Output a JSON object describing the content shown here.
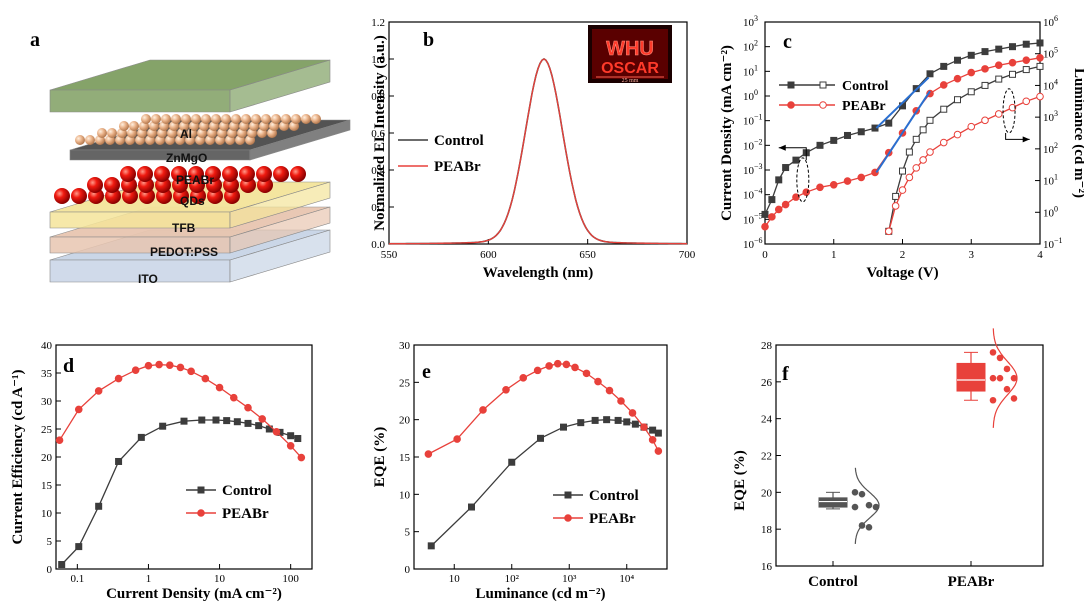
{
  "panels": {
    "a": {
      "letter": "a",
      "layers": [
        "Al",
        "ZnMgO",
        "PEABr",
        "QDs",
        "TFB",
        "PEDOT:PSS",
        "ITO"
      ],
      "colors": {
        "Al": "#7f9f62",
        "ZnMgO": "#e8b98c",
        "PEABr": "#4a4a4a",
        "QDs": "#e01010",
        "TFB": "#f4e49a",
        "PEDOT:PSS": "#e8c6b0",
        "ITO": "#c8d4e6"
      }
    },
    "b": {
      "letter": "b",
      "inset": {
        "line1": "WHU",
        "line2": "OSCAR",
        "scale": "25 mm"
      }
    },
    "c": {
      "letter": "c"
    },
    "d": {
      "letter": "d"
    },
    "e": {
      "letter": "e"
    },
    "f": {
      "letter": "f"
    }
  },
  "chart_data": [
    {
      "id": "b",
      "type": "line",
      "xlabel": "Wavelength (nm)",
      "ylabel": "Normalized EL Intensity (a.u.)",
      "xlim": [
        550,
        700
      ],
      "ylim": [
        0,
        1.2
      ],
      "xticks": [
        550,
        600,
        650,
        700
      ],
      "yticks": [
        0.0,
        0.2,
        0.4,
        0.6,
        0.8,
        1.0,
        1.2
      ],
      "peak": 628,
      "fwhm": 22,
      "legend": [
        "Control",
        "PEABr"
      ],
      "series": [
        {
          "name": "Control",
          "color": "#3c3c3c"
        },
        {
          "name": "PEABr",
          "color": "#e8413b"
        }
      ]
    },
    {
      "id": "c",
      "type": "line",
      "xlabel": "Voltage (V)",
      "ylabel": "Current Density (mA cm⁻²)",
      "ylabel2": "Luminance (cd m⁻²)",
      "xlim": [
        0,
        4
      ],
      "xticks": [
        0,
        1,
        2,
        3,
        4
      ],
      "ylog_left": [
        -6,
        3
      ],
      "ylog_right": [
        -1,
        6
      ],
      "legend": [
        "Control",
        "PEABr"
      ],
      "series": [
        {
          "name": "Control",
          "axis": "left",
          "color": "#3c3c3c",
          "x": [
            0,
            0.1,
            0.2,
            0.3,
            0.45,
            0.6,
            0.8,
            1.0,
            1.2,
            1.4,
            1.6,
            1.8,
            2.0,
            2.2,
            2.4,
            2.6,
            2.8,
            3.0,
            3.2,
            3.4,
            3.6,
            3.8,
            4.0
          ],
          "y_log": [
            -4.8,
            -4.2,
            -3.4,
            -2.9,
            -2.6,
            -2.3,
            -2.0,
            -1.8,
            -1.6,
            -1.45,
            -1.3,
            -1.1,
            -0.4,
            0.3,
            0.9,
            1.2,
            1.45,
            1.65,
            1.8,
            1.9,
            2.0,
            2.1,
            2.15
          ]
        },
        {
          "name": "PEABr",
          "axis": "left",
          "color": "#e8413b",
          "x": [
            0,
            0.1,
            0.2,
            0.3,
            0.45,
            0.6,
            0.8,
            1.0,
            1.2,
            1.4,
            1.6,
            1.8,
            2.0,
            2.2,
            2.4,
            2.6,
            2.8,
            3.0,
            3.2,
            3.4,
            3.6,
            3.8,
            4.0
          ],
          "y_log": [
            -5.3,
            -4.9,
            -4.6,
            -4.4,
            -4.1,
            -3.9,
            -3.7,
            -3.6,
            -3.45,
            -3.3,
            -3.1,
            -2.3,
            -1.5,
            -0.6,
            0.1,
            0.45,
            0.7,
            0.95,
            1.1,
            1.25,
            1.35,
            1.45,
            1.55
          ]
        },
        {
          "name": "Control",
          "axis": "right",
          "color": "#3c3c3c",
          "open": true,
          "x": [
            1.8,
            1.9,
            2.0,
            2.1,
            2.2,
            2.3,
            2.4,
            2.6,
            2.8,
            3.0,
            3.2,
            3.4,
            3.6,
            3.8,
            4.0
          ],
          "y_log": [
            -0.6,
            0.5,
            1.3,
            1.9,
            2.3,
            2.6,
            2.9,
            3.25,
            3.55,
            3.8,
            4.0,
            4.2,
            4.35,
            4.5,
            4.6
          ]
        },
        {
          "name": "PEABr",
          "axis": "right",
          "color": "#e8413b",
          "open": true,
          "x": [
            1.8,
            1.9,
            2.0,
            2.1,
            2.2,
            2.3,
            2.4,
            2.6,
            2.8,
            3.0,
            3.2,
            3.4,
            3.6,
            3.8,
            4.0
          ],
          "y_log": [
            -0.6,
            0.2,
            0.7,
            1.1,
            1.4,
            1.65,
            1.9,
            2.2,
            2.45,
            2.7,
            2.9,
            3.1,
            3.3,
            3.5,
            3.65
          ]
        }
      ]
    },
    {
      "id": "d",
      "type": "line",
      "xlabel": "Current Density (mA cm⁻²)",
      "ylabel": "Current Efficiency (cd A⁻¹)",
      "xlog": [
        -1.3,
        2.3
      ],
      "xticks_log": [
        -1,
        0,
        1,
        2
      ],
      "xtick_labels": [
        "0.1",
        "1",
        "10",
        "100"
      ],
      "ylim": [
        0,
        40
      ],
      "yticks": [
        0,
        5,
        10,
        15,
        20,
        25,
        30,
        35,
        40
      ],
      "legend": [
        "Control",
        "PEABr"
      ],
      "series": [
        {
          "name": "Control",
          "color": "#3c3c3c",
          "x_log": [
            -1.22,
            -0.98,
            -0.7,
            -0.42,
            -0.1,
            0.2,
            0.5,
            0.75,
            0.95,
            1.1,
            1.25,
            1.4,
            1.55,
            1.7,
            1.85,
            2.0,
            2.1
          ],
          "y": [
            0.8,
            4.0,
            11.2,
            19.2,
            23.5,
            25.5,
            26.4,
            26.6,
            26.6,
            26.5,
            26.3,
            26.0,
            25.6,
            25.0,
            24.4,
            23.8,
            23.3
          ]
        },
        {
          "name": "PEABr",
          "color": "#e8413b",
          "x_log": [
            -1.25,
            -0.98,
            -0.7,
            -0.42,
            -0.18,
            0.0,
            0.15,
            0.3,
            0.45,
            0.6,
            0.8,
            1.0,
            1.2,
            1.4,
            1.6,
            1.8,
            2.0,
            2.15
          ],
          "y": [
            23.0,
            28.5,
            31.8,
            34.0,
            35.5,
            36.3,
            36.5,
            36.4,
            36.0,
            35.3,
            34.0,
            32.4,
            30.6,
            28.8,
            26.8,
            24.5,
            22.0,
            19.9
          ]
        }
      ]
    },
    {
      "id": "e",
      "type": "line",
      "xlabel": "Luminance (cd m⁻²)",
      "ylabel": "EQE (%)",
      "xlog": [
        0.3,
        4.7
      ],
      "xticks_log": [
        1,
        2,
        3,
        4
      ],
      "xtick_labels": [
        "10",
        "10²",
        "10³",
        "10⁴"
      ],
      "ylim": [
        0,
        30
      ],
      "yticks": [
        0,
        5,
        10,
        15,
        20,
        25,
        30
      ],
      "legend": [
        "Control",
        "PEABr"
      ],
      "series": [
        {
          "name": "Control",
          "color": "#3c3c3c",
          "x_log": [
            0.6,
            1.3,
            2.0,
            2.5,
            2.9,
            3.2,
            3.45,
            3.65,
            3.85,
            4.0,
            4.15,
            4.3,
            4.45,
            4.55
          ],
          "y": [
            3.1,
            8.3,
            14.3,
            17.5,
            19.0,
            19.6,
            19.9,
            20.0,
            19.9,
            19.7,
            19.4,
            19.0,
            18.6,
            18.2
          ]
        },
        {
          "name": "PEABr",
          "color": "#e8413b",
          "x_log": [
            0.55,
            1.05,
            1.5,
            1.9,
            2.2,
            2.45,
            2.65,
            2.8,
            2.95,
            3.1,
            3.3,
            3.5,
            3.7,
            3.9,
            4.1,
            4.3,
            4.45,
            4.55
          ],
          "y": [
            15.4,
            17.4,
            21.3,
            24.0,
            25.6,
            26.6,
            27.2,
            27.5,
            27.4,
            27.0,
            26.2,
            25.1,
            23.9,
            22.5,
            20.9,
            19.0,
            17.3,
            15.8
          ]
        }
      ]
    },
    {
      "id": "f",
      "type": "box",
      "ylabel": "EQE (%)",
      "ylim": [
        16,
        28
      ],
      "yticks": [
        16,
        18,
        20,
        22,
        24,
        26,
        28
      ],
      "categories": [
        "Control",
        "PEABr"
      ],
      "series": [
        {
          "name": "Control",
          "color": "#555555",
          "q1": 19.2,
          "median": 19.5,
          "q3": 19.7,
          "min": 19.1,
          "max": 20.0,
          "points": [
            20.0,
            19.9,
            19.3,
            19.2,
            19.2,
            18.2,
            18.1
          ],
          "dist_mean": 19.3,
          "dist_sd": 0.7
        },
        {
          "name": "PEABr",
          "color": "#e8413b",
          "q1": 25.5,
          "median": 26.1,
          "q3": 27.0,
          "min": 25.0,
          "max": 27.6,
          "points": [
            27.6,
            27.3,
            26.7,
            26.2,
            26.2,
            26.2,
            25.6,
            25.1,
            25.0
          ],
          "dist_mean": 26.2,
          "dist_sd": 0.9
        }
      ]
    }
  ]
}
